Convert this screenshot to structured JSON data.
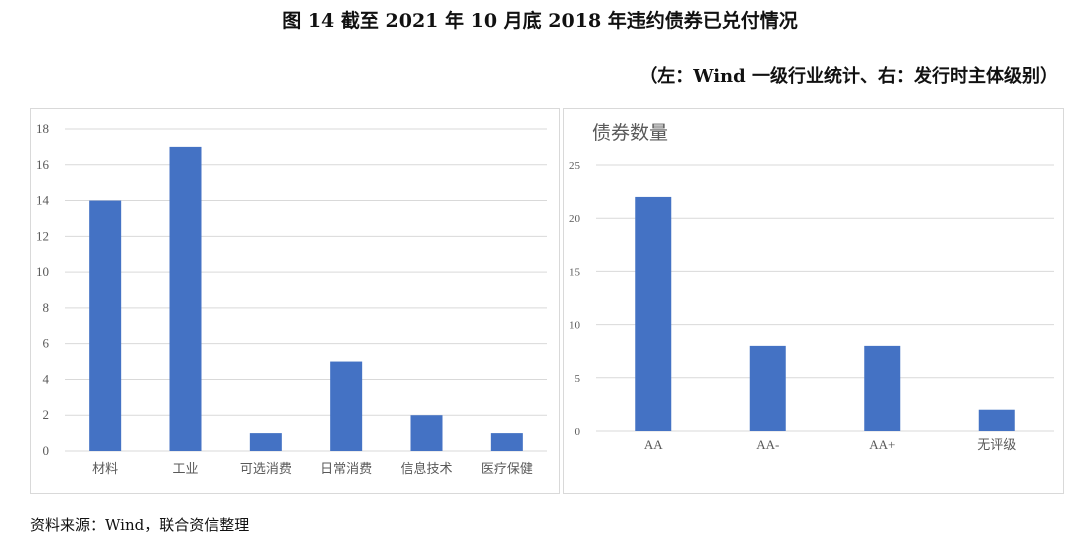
{
  "title": "图 14   截至 2021 年 10 月底 2018 年违约债券已兑付情况",
  "subtitle": "（左：Wind 一级行业统计、右：发行时主体级别）",
  "source": "资料来源：Wind，联合资信整理",
  "chart_data": [
    {
      "type": "bar",
      "title": "",
      "categories": [
        "材料",
        "工业",
        "可选消费",
        "日常消费",
        "信息技术",
        "医疗保健"
      ],
      "values": [
        14,
        17,
        1,
        5,
        2,
        1
      ],
      "ylim": [
        0,
        18
      ],
      "yticks": [
        0,
        2,
        4,
        6,
        8,
        10,
        12,
        14,
        16,
        18
      ],
      "grid": true,
      "color": "#4472C4"
    },
    {
      "type": "bar",
      "title": "债券数量",
      "categories": [
        "AA",
        "AA-",
        "AA+",
        "无评级"
      ],
      "values": [
        22,
        8,
        8,
        2
      ],
      "ylim": [
        0,
        25
      ],
      "yticks": [
        0,
        5,
        10,
        15,
        20,
        25
      ],
      "grid": true,
      "color": "#4472C4"
    }
  ]
}
